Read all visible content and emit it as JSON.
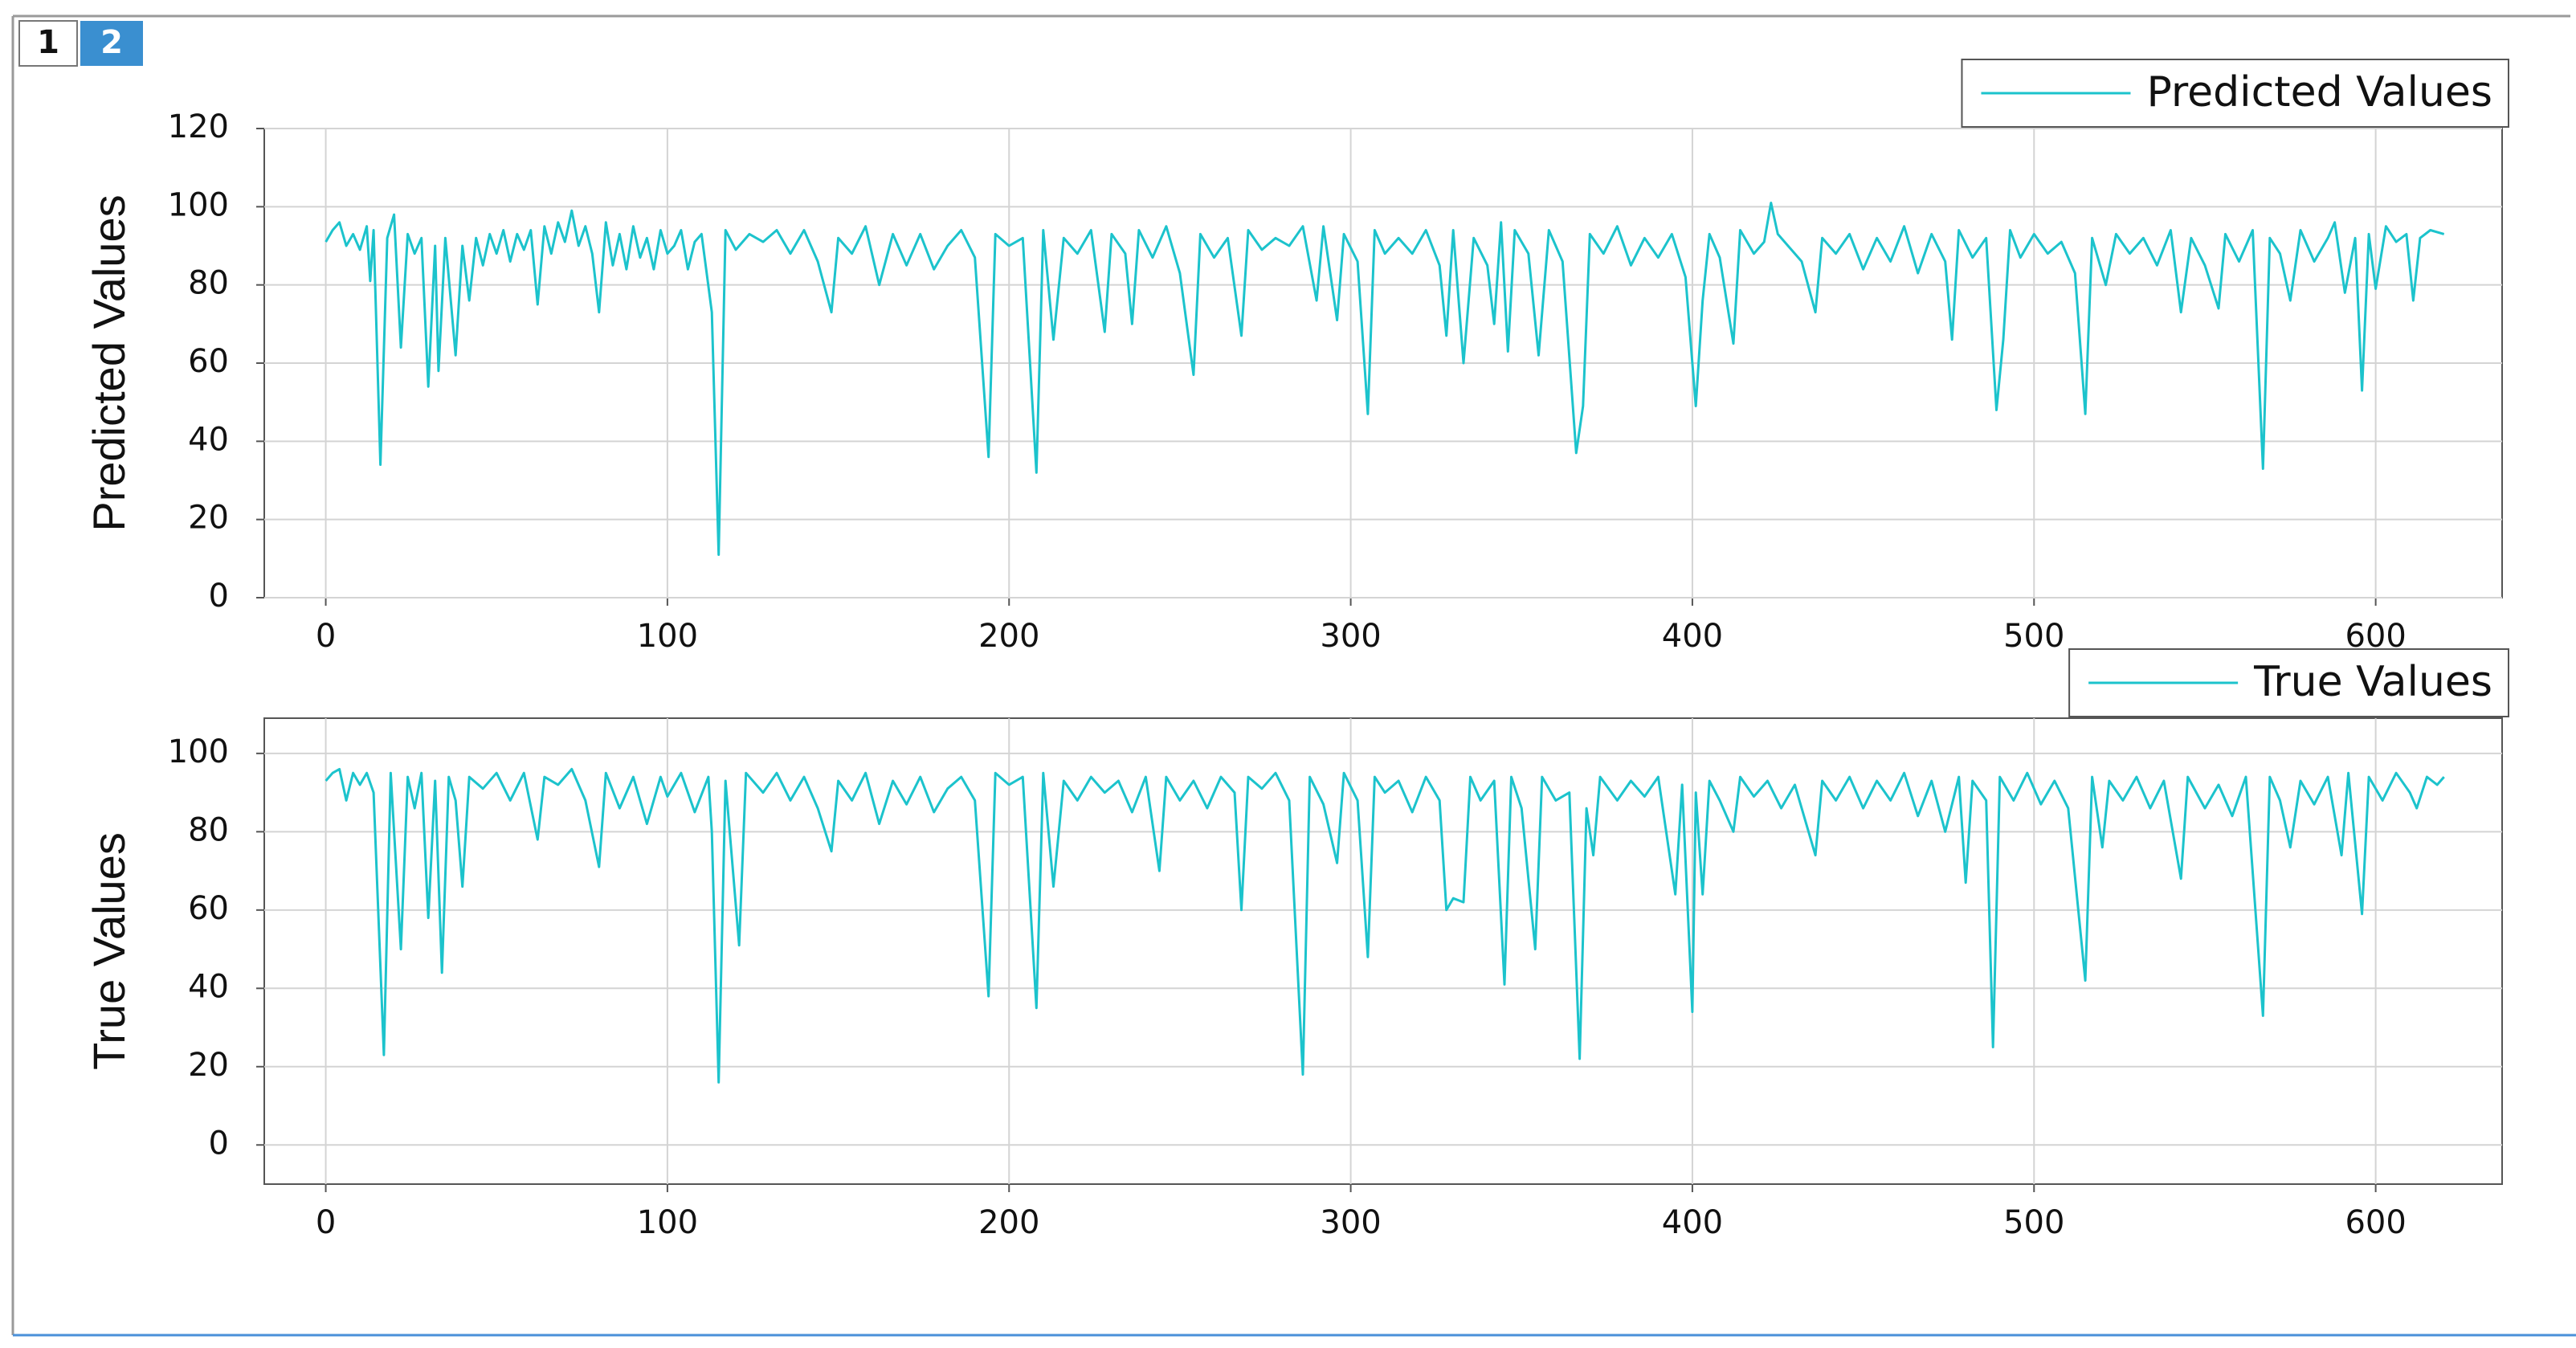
{
  "tabs": [
    "1",
    "2"
  ],
  "chart_data": [
    {
      "type": "line",
      "ylabel": "Predicted Values",
      "legend": "top-right",
      "grid": true,
      "xlim": [
        -18,
        637
      ],
      "xticks": [
        0,
        100,
        200,
        300,
        400,
        500,
        600
      ],
      "ylim": [
        0,
        120
      ],
      "yticks": [
        0,
        20,
        40,
        60,
        80,
        100,
        120
      ],
      "x": [
        0,
        2,
        4,
        6,
        8,
        10,
        12,
        13,
        14,
        16,
        18,
        20,
        22,
        24,
        26,
        28,
        30,
        32,
        33,
        35,
        38,
        40,
        42,
        44,
        46,
        48,
        50,
        52,
        54,
        56,
        58,
        60,
        62,
        64,
        66,
        68,
        70,
        72,
        74,
        76,
        78,
        80,
        82,
        84,
        86,
        88,
        90,
        92,
        94,
        96,
        98,
        100,
        102,
        104,
        106,
        108,
        110,
        113,
        115,
        117,
        120,
        124,
        128,
        132,
        136,
        140,
        144,
        148,
        150,
        154,
        158,
        162,
        166,
        170,
        174,
        178,
        182,
        186,
        190,
        194,
        196,
        200,
        204,
        208,
        210,
        213,
        216,
        220,
        224,
        228,
        230,
        234,
        236,
        238,
        242,
        246,
        250,
        254,
        256,
        260,
        264,
        268,
        270,
        274,
        278,
        282,
        286,
        290,
        292,
        296,
        298,
        302,
        305,
        307,
        310,
        314,
        318,
        322,
        326,
        328,
        330,
        333,
        336,
        340,
        342,
        344,
        346,
        348,
        352,
        355,
        358,
        362,
        366,
        368,
        370,
        374,
        378,
        382,
        386,
        390,
        394,
        398,
        400,
        401,
        403,
        405,
        408,
        412,
        414,
        418,
        421,
        423,
        425,
        428,
        432,
        436,
        438,
        442,
        446,
        450,
        454,
        458,
        462,
        466,
        470,
        474,
        476,
        478,
        482,
        486,
        489,
        491,
        493,
        496,
        500,
        504,
        508,
        512,
        515,
        517,
        521,
        524,
        528,
        532,
        536,
        540,
        543,
        546,
        550,
        554,
        556,
        560,
        564,
        567,
        569,
        572,
        575,
        578,
        582,
        586,
        588,
        591,
        594,
        596,
        598,
        600,
        603,
        606,
        609,
        611,
        613,
        616,
        620
      ],
      "series": [
        {
          "name": "Predicted Values",
          "color": "#1cc3cc",
          "values": [
            91,
            94,
            96,
            90,
            93,
            89,
            95,
            81,
            94,
            34,
            92,
            98,
            64,
            93,
            88,
            92,
            54,
            90,
            58,
            92,
            62,
            90,
            76,
            92,
            85,
            93,
            88,
            94,
            86,
            93,
            89,
            94,
            75,
            95,
            88,
            96,
            91,
            99,
            90,
            95,
            88,
            73,
            96,
            85,
            93,
            84,
            95,
            87,
            92,
            84,
            94,
            88,
            90,
            94,
            84,
            91,
            93,
            73,
            11,
            94,
            89,
            93,
            91,
            94,
            88,
            94,
            86,
            73,
            92,
            88,
            95,
            80,
            93,
            85,
            93,
            84,
            90,
            94,
            87,
            36,
            93,
            90,
            92,
            32,
            94,
            66,
            92,
            88,
            94,
            68,
            93,
            88,
            70,
            94,
            87,
            95,
            83,
            57,
            93,
            87,
            92,
            67,
            94,
            89,
            92,
            90,
            95,
            76,
            95,
            71,
            93,
            86,
            47,
            94,
            88,
            92,
            88,
            94,
            85,
            67,
            94,
            60,
            92,
            85,
            70,
            96,
            63,
            94,
            88,
            62,
            94,
            86,
            37,
            49,
            93,
            88,
            95,
            85,
            92,
            87,
            93,
            82,
            60,
            49,
            76,
            93,
            87,
            65,
            94,
            88,
            91,
            101,
            93,
            90,
            86,
            73,
            92,
            88,
            93,
            84,
            92,
            86,
            95,
            83,
            93,
            86,
            66,
            94,
            87,
            92,
            48,
            66,
            94,
            87,
            93,
            88,
            91,
            83,
            47,
            92,
            80,
            93,
            88,
            92,
            85,
            94,
            73,
            92,
            85,
            74,
            93,
            86,
            94,
            33,
            92,
            88,
            76,
            94,
            86,
            92,
            96,
            78,
            92,
            53,
            93,
            79,
            95,
            91,
            93,
            76,
            92,
            94,
            93
          ]
        }
      ]
    },
    {
      "type": "line",
      "ylabel": "True Values",
      "legend": "top-right",
      "grid": true,
      "xlim": [
        -18,
        637
      ],
      "xticks": [
        0,
        100,
        200,
        300,
        400,
        500,
        600
      ],
      "ylim": [
        -10,
        109
      ],
      "yticks": [
        0,
        20,
        40,
        60,
        80,
        100
      ],
      "x": [
        0,
        2,
        4,
        6,
        8,
        10,
        12,
        14,
        17,
        19,
        22,
        24,
        26,
        28,
        30,
        32,
        34,
        36,
        38,
        40,
        42,
        46,
        50,
        54,
        58,
        62,
        64,
        68,
        72,
        76,
        80,
        82,
        86,
        90,
        94,
        98,
        100,
        104,
        108,
        112,
        113,
        115,
        117,
        121,
        123,
        128,
        132,
        136,
        140,
        144,
        148,
        150,
        154,
        158,
        162,
        166,
        170,
        174,
        178,
        182,
        186,
        190,
        194,
        196,
        200,
        204,
        208,
        210,
        213,
        216,
        220,
        224,
        228,
        232,
        236,
        240,
        244,
        246,
        250,
        254,
        258,
        262,
        266,
        268,
        270,
        274,
        278,
        282,
        286,
        288,
        292,
        296,
        298,
        302,
        305,
        307,
        310,
        314,
        318,
        322,
        326,
        328,
        330,
        333,
        335,
        338,
        342,
        345,
        347,
        350,
        354,
        356,
        360,
        364,
        367,
        369,
        371,
        373,
        378,
        382,
        386,
        390,
        395,
        397,
        400,
        401,
        403,
        405,
        408,
        412,
        414,
        418,
        422,
        426,
        430,
        436,
        438,
        442,
        446,
        450,
        454,
        458,
        462,
        466,
        470,
        474,
        478,
        480,
        482,
        486,
        488,
        490,
        494,
        498,
        502,
        506,
        510,
        515,
        517,
        520,
        522,
        526,
        530,
        534,
        538,
        543,
        545,
        550,
        554,
        558,
        562,
        567,
        569,
        572,
        575,
        578,
        582,
        586,
        590,
        592,
        596,
        598,
        602,
        606,
        610,
        612,
        615,
        618,
        620
      ],
      "series": [
        {
          "name": "True Values",
          "color": "#1cc3cc",
          "values": [
            93,
            95,
            96,
            88,
            95,
            92,
            95,
            90,
            23,
            95,
            50,
            94,
            86,
            95,
            58,
            93,
            44,
            94,
            88,
            66,
            94,
            91,
            95,
            88,
            95,
            78,
            94,
            92,
            96,
            88,
            71,
            95,
            86,
            94,
            82,
            94,
            89,
            95,
            85,
            94,
            80,
            16,
            93,
            51,
            95,
            90,
            95,
            88,
            94,
            86,
            75,
            93,
            88,
            95,
            82,
            93,
            87,
            94,
            85,
            91,
            94,
            88,
            38,
            95,
            92,
            94,
            35,
            95,
            66,
            93,
            88,
            94,
            90,
            93,
            85,
            94,
            70,
            94,
            88,
            93,
            86,
            94,
            90,
            60,
            94,
            91,
            95,
            88,
            18,
            94,
            87,
            72,
            95,
            88,
            48,
            94,
            90,
            93,
            85,
            94,
            88,
            60,
            63,
            62,
            94,
            88,
            93,
            41,
            94,
            86,
            50,
            94,
            88,
            90,
            22,
            86,
            74,
            94,
            88,
            93,
            89,
            94,
            64,
            92,
            34,
            90,
            64,
            93,
            88,
            80,
            94,
            89,
            93,
            86,
            92,
            74,
            93,
            88,
            94,
            86,
            93,
            88,
            95,
            84,
            93,
            80,
            94,
            67,
            93,
            88,
            25,
            94,
            88,
            95,
            87,
            93,
            86,
            42,
            94,
            76,
            93,
            88,
            94,
            86,
            93,
            68,
            94,
            86,
            92,
            84,
            94,
            33,
            94,
            88,
            76,
            93,
            87,
            94,
            74,
            95,
            59,
            94,
            88,
            95,
            90,
            86,
            94,
            92,
            94
          ]
        }
      ]
    }
  ]
}
